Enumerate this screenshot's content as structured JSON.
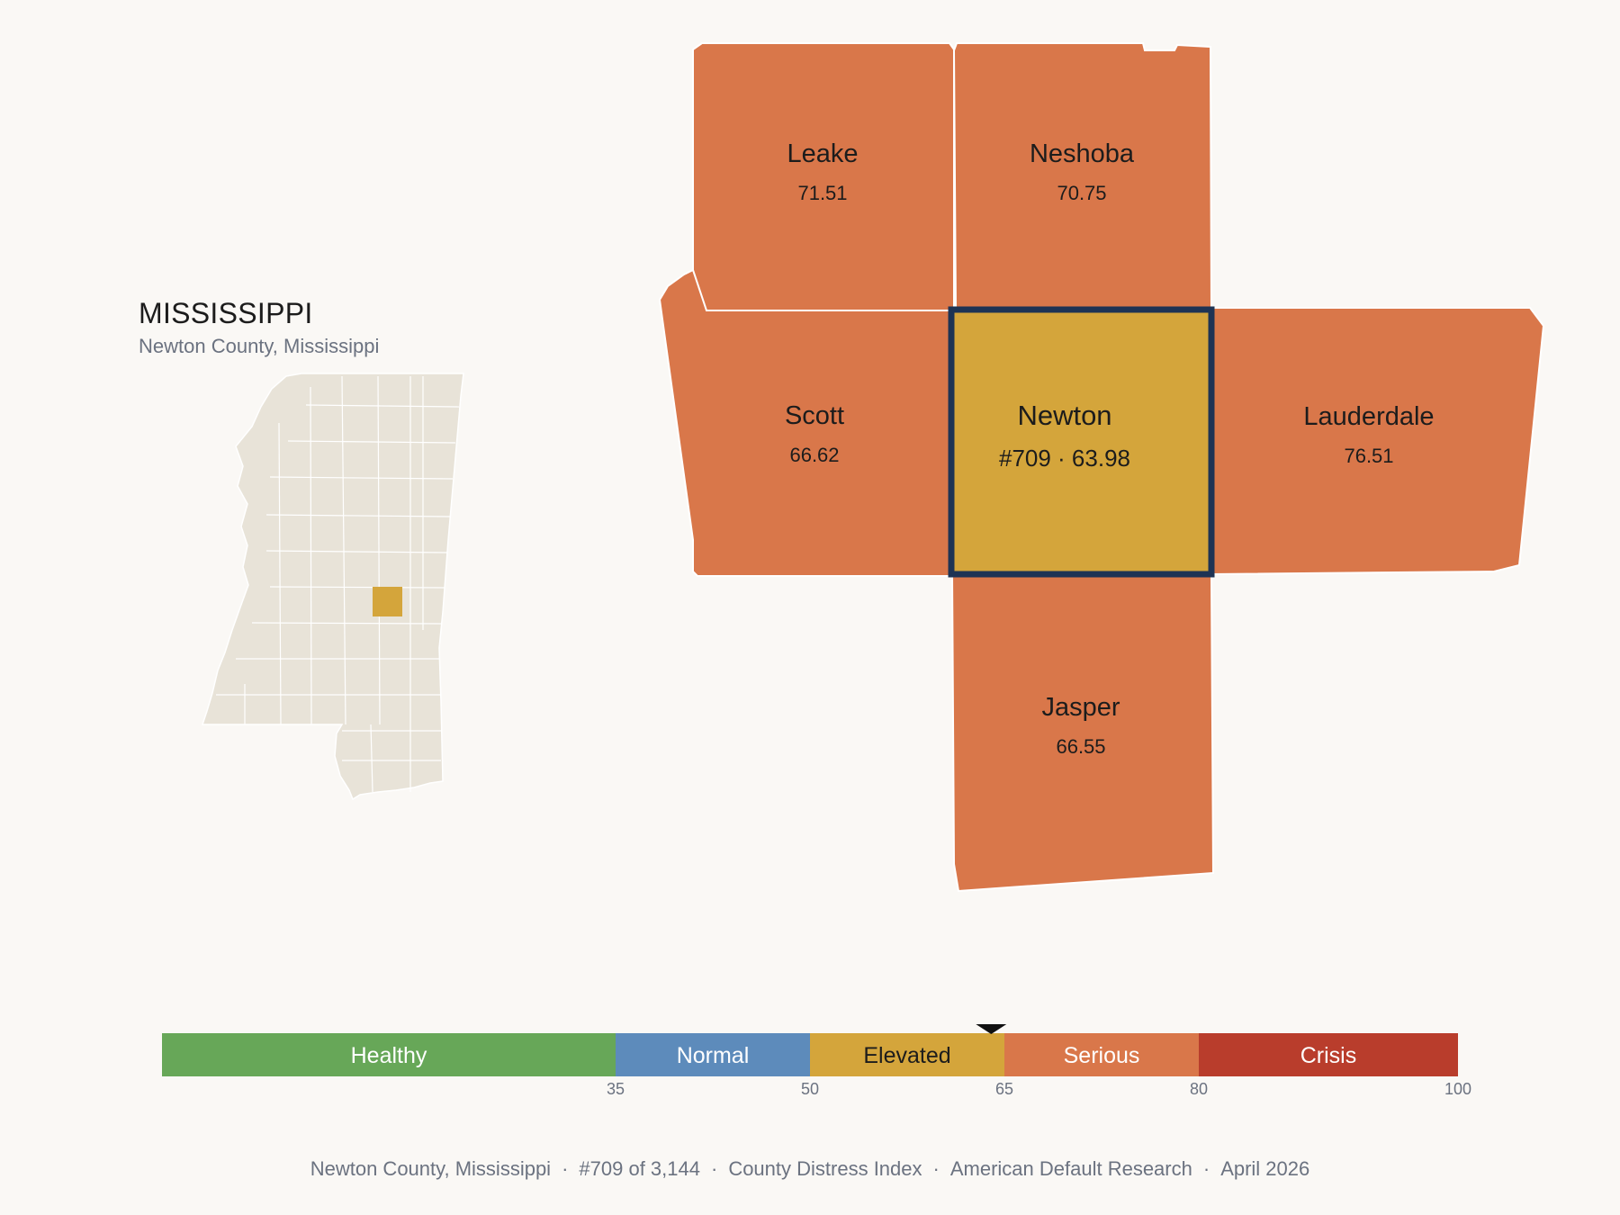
{
  "state": {
    "name": "MISSISSIPPI",
    "subtitle": "Newton County, Mississippi"
  },
  "counties": [
    {
      "id": "leake",
      "name": "Leake",
      "score": "71.51",
      "fill": "#d9774a"
    },
    {
      "id": "neshoba",
      "name": "Neshoba",
      "score": "70.75",
      "fill": "#d9774a"
    },
    {
      "id": "scott",
      "name": "Scott",
      "score": "66.62",
      "fill": "#d9774a"
    },
    {
      "id": "newton",
      "name": "Newton",
      "score": "#709 · 63.98",
      "fill": "#d4a53b",
      "highlight": "#1e3354"
    },
    {
      "id": "lauderdale",
      "name": "Lauderdale",
      "score": "76.51",
      "fill": "#d9774a"
    },
    {
      "id": "jasper",
      "name": "Jasper",
      "score": "66.55",
      "fill": "#d9774a"
    }
  ],
  "scale": {
    "bands": [
      {
        "label": "Healthy",
        "from": 0,
        "to": 35,
        "color": "#67a758",
        "text": "#ffffff"
      },
      {
        "label": "Normal",
        "from": 35,
        "to": 50,
        "color": "#5d8bbb",
        "text": "#ffffff"
      },
      {
        "label": "Elevated",
        "from": 50,
        "to": 65,
        "color": "#d4a53b",
        "text": "#1c1c1c"
      },
      {
        "label": "Serious",
        "from": 65,
        "to": 80,
        "color": "#d9774a",
        "text": "#ffffff"
      },
      {
        "label": "Crisis",
        "from": 80,
        "to": 100,
        "color": "#b93d2c",
        "text": "#ffffff"
      }
    ],
    "ticks": [
      "35",
      "50",
      "65",
      "80",
      "100"
    ],
    "marker_value": 63.98
  },
  "footer": {
    "county": "Newton County, Mississippi",
    "rank": "#709 of 3,144",
    "index": "County Distress Index",
    "org": "American Default Research",
    "date": "April 2026"
  },
  "colors": {
    "background": "#faf8f5",
    "state_fill": "#e8e3d8",
    "state_highlight": "#d4a53b"
  }
}
